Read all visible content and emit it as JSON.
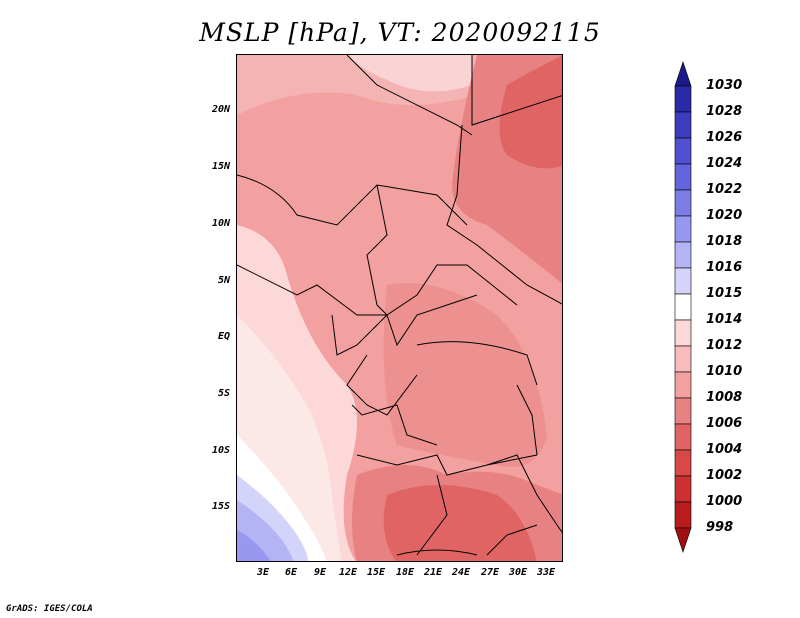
{
  "title": "MSLP [hPa], VT: 2020092115",
  "footer": "GrADS: IGES/COLA",
  "lat_labels": [
    "20N",
    "15N",
    "10N",
    "5N",
    "EQ",
    "5S",
    "10S",
    "15S"
  ],
  "lon_labels": [
    "3E",
    "6E",
    "9E",
    "12E",
    "15E",
    "18E",
    "21E",
    "24E",
    "27E",
    "30E",
    "33E"
  ],
  "colorbar": {
    "levels": [
      "1030",
      "1028",
      "1026",
      "1024",
      "1022",
      "1020",
      "1018",
      "1016",
      "1015",
      "1014",
      "1012",
      "1010",
      "1008",
      "1006",
      "1004",
      "1002",
      "1000",
      "998"
    ],
    "colors": [
      "#1a1a8c",
      "#2a2aa8",
      "#3c3cbf",
      "#5050d0",
      "#6464dc",
      "#7c7ce6",
      "#9898f0",
      "#b4b4f5",
      "#d4d4fa",
      "#ffffff",
      "#fcd8d8",
      "#f7bcbc",
      "#f2a0a0",
      "#e88282",
      "#e06464",
      "#d84848",
      "#cc3030",
      "#b81c1c",
      "#a01010"
    ]
  }
}
